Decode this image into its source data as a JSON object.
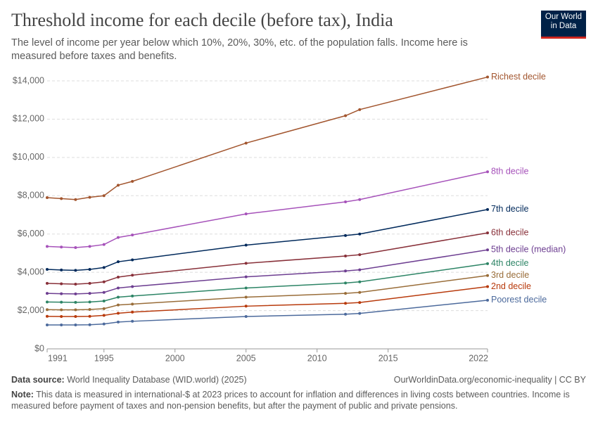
{
  "chart_data": {
    "type": "line",
    "title": "Threshold income for each decile (before tax), India",
    "subtitle": "The level of income per year below which 10%, 20%, 30%, etc. of the population falls. Income here is measured before taxes and benefits.",
    "logo": "Our World in Data",
    "source_label": "Data source:",
    "source": "World Inequality Database (WID.world) (2025)",
    "url": "OurWorldinData.org/economic-inequality | CC BY",
    "note_label": "Note:",
    "note": "This data is measured in international-$ at 2023 prices to account for inflation and differences in living costs between countries. Income is measured before payment of taxes and non-pension benefits, but after the payment of public and private pensions.",
    "x": [
      1991,
      1992,
      1993,
      1994,
      1995,
      1996,
      1997,
      2005,
      2012,
      2013,
      2022
    ],
    "xlim": [
      1991,
      2022
    ],
    "xticks": [
      1991,
      1995,
      2000,
      2005,
      2010,
      2015,
      2022
    ],
    "ylim": [
      0,
      14000
    ],
    "yticks": [
      {
        "value": 0,
        "label": "$0"
      },
      {
        "value": 2000,
        "label": "$2,000"
      },
      {
        "value": 4000,
        "label": "$4,000"
      },
      {
        "value": 6000,
        "label": "$6,000"
      },
      {
        "value": 8000,
        "label": "$8,000"
      },
      {
        "value": 10000,
        "label": "$10,000"
      },
      {
        "value": 12000,
        "label": "$12,000"
      },
      {
        "value": 14000,
        "label": "$14,000"
      }
    ],
    "grid": true,
    "series": [
      {
        "name": "Richest decile",
        "color": "#a2552e",
        "values": [
          7900,
          7850,
          7800,
          7920,
          8000,
          8550,
          8750,
          10750,
          12180,
          12500,
          14200
        ]
      },
      {
        "name": "8th decile",
        "color": "#a652ba",
        "values": [
          5350,
          5320,
          5290,
          5350,
          5450,
          5820,
          5950,
          7050,
          7680,
          7800,
          9250
        ]
      },
      {
        "name": "7th decile",
        "color": "#00295b",
        "values": [
          4150,
          4120,
          4100,
          4150,
          4250,
          4550,
          4650,
          5420,
          5920,
          6000,
          7280
        ]
      },
      {
        "name": "6th decile",
        "color": "#883039",
        "values": [
          3420,
          3400,
          3380,
          3420,
          3500,
          3750,
          3850,
          4470,
          4850,
          4920,
          6060
        ]
      },
      {
        "name": "5th decile (median)",
        "color": "#6d3e91",
        "values": [
          2900,
          2880,
          2870,
          2900,
          2950,
          3180,
          3250,
          3760,
          4070,
          4130,
          5170
        ]
      },
      {
        "name": "4th decile",
        "color": "#2c8465",
        "values": [
          2450,
          2440,
          2430,
          2450,
          2500,
          2700,
          2760,
          3180,
          3440,
          3500,
          4450
        ]
      },
      {
        "name": "3rd decile",
        "color": "#996d39",
        "values": [
          2050,
          2040,
          2040,
          2060,
          2100,
          2290,
          2340,
          2700,
          2900,
          2950,
          3830
        ]
      },
      {
        "name": "2nd decile",
        "color": "#b83a0c",
        "values": [
          1700,
          1690,
          1690,
          1700,
          1750,
          1860,
          1920,
          2230,
          2380,
          2420,
          3250
        ]
      },
      {
        "name": "Poorest decile",
        "color": "#4c6a9c",
        "values": [
          1250,
          1250,
          1250,
          1260,
          1300,
          1400,
          1440,
          1690,
          1810,
          1850,
          2540
        ]
      }
    ]
  }
}
